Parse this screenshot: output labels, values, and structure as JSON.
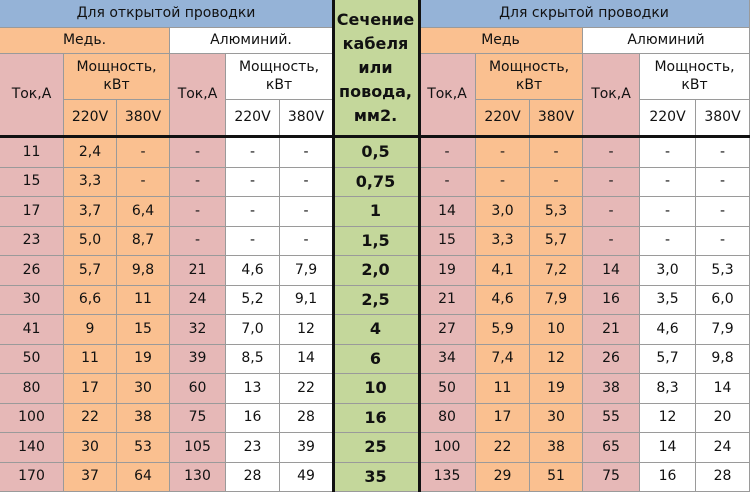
{
  "left": {
    "title": "Для открытой проводки",
    "groups": [
      {
        "name": "Медь.",
        "current": "Ток,А",
        "power": "Мощность, кВт",
        "voltages": [
          "220V",
          "380V"
        ]
      },
      {
        "name": "Алюминий.",
        "current": "Ток,А",
        "power": "Мощность, кВт",
        "voltages": [
          "220V",
          "380V"
        ]
      }
    ]
  },
  "section": "Сечение кабеля или повода, мм2.",
  "right": {
    "title": "Для скрытой проводки",
    "groups": [
      {
        "name": "Медь",
        "current": "Ток,А",
        "power": "Мощность, кВт",
        "voltages": [
          "220V",
          "380V"
        ]
      },
      {
        "name": "Алюминий",
        "current": "Ток,А",
        "power": "Мощность, кВт",
        "voltages": [
          "220V",
          "380V"
        ]
      }
    ]
  },
  "rows": [
    [
      "11",
      "2,4",
      "-",
      "-",
      "-",
      "-",
      "0,5",
      "-",
      "-",
      "-",
      "-",
      "-",
      "-"
    ],
    [
      "15",
      "3,3",
      "-",
      "-",
      "-",
      "-",
      "0,75",
      "-",
      "-",
      "-",
      "-",
      "-",
      "-"
    ],
    [
      "17",
      "3,7",
      "6,4",
      "-",
      "-",
      "-",
      "1",
      "14",
      "3,0",
      "5,3",
      "-",
      "-",
      "-"
    ],
    [
      "23",
      "5,0",
      "8,7",
      "-",
      "-",
      "-",
      "1,5",
      "15",
      "3,3",
      "5,7",
      "-",
      "-",
      "-"
    ],
    [
      "26",
      "5,7",
      "9,8",
      "21",
      "4,6",
      "7,9",
      "2,0",
      "19",
      "4,1",
      "7,2",
      "14",
      "3,0",
      "5,3"
    ],
    [
      "30",
      "6,6",
      "11",
      "24",
      "5,2",
      "9,1",
      "2,5",
      "21",
      "4,6",
      "7,9",
      "16",
      "3,5",
      "6,0"
    ],
    [
      "41",
      "9",
      "15",
      "32",
      "7,0",
      "12",
      "4",
      "27",
      "5,9",
      "10",
      "21",
      "4,6",
      "7,9"
    ],
    [
      "50",
      "11",
      "19",
      "39",
      "8,5",
      "14",
      "6",
      "34",
      "7,4",
      "12",
      "26",
      "5,7",
      "9,8"
    ],
    [
      "80",
      "17",
      "30",
      "60",
      "13",
      "22",
      "10",
      "50",
      "11",
      "19",
      "38",
      "8,3",
      "14"
    ],
    [
      "100",
      "22",
      "38",
      "75",
      "16",
      "28",
      "16",
      "80",
      "17",
      "30",
      "55",
      "12",
      "20"
    ],
    [
      "140",
      "30",
      "53",
      "105",
      "23",
      "39",
      "25",
      "100",
      "22",
      "38",
      "65",
      "14",
      "24"
    ],
    [
      "170",
      "37",
      "64",
      "130",
      "28",
      "49",
      "35",
      "135",
      "29",
      "51",
      "75",
      "16",
      "28"
    ]
  ]
}
